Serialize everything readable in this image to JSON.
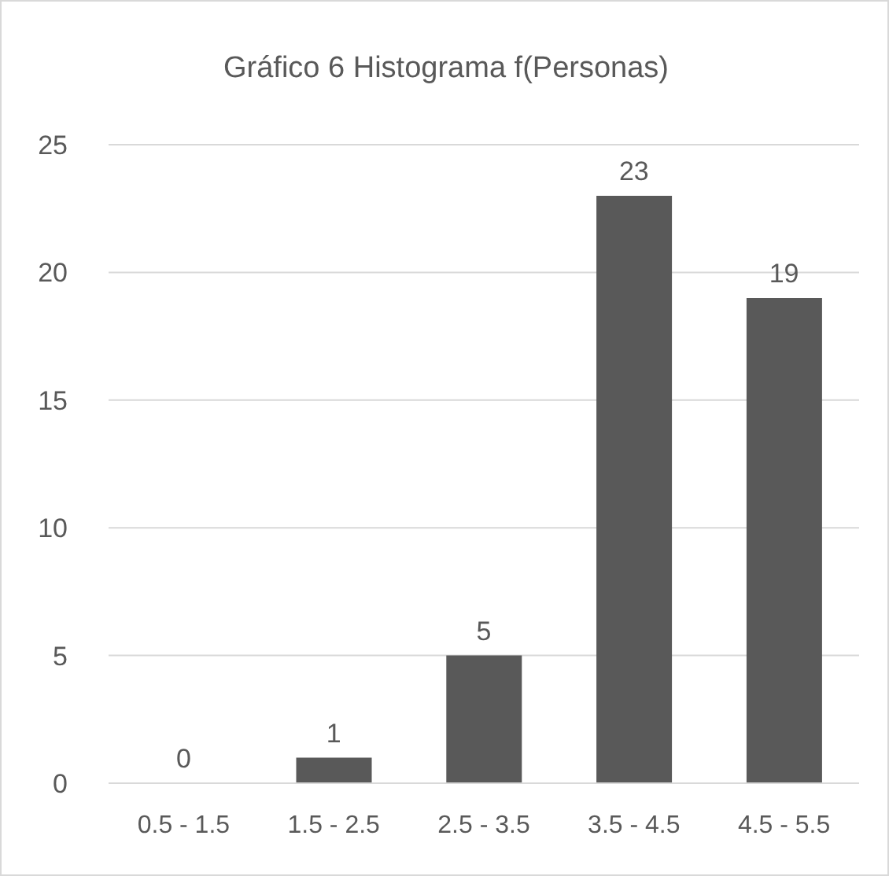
{
  "chart_data": {
    "type": "bar",
    "title": "Gráfico 6 Histograma f(Personas)",
    "categories": [
      "0.5 - 1.5",
      "1.5 - 2.5",
      "2.5 - 3.5",
      "3.5 - 4.5",
      "4.5 - 5.5"
    ],
    "values": [
      0,
      1,
      5,
      23,
      19
    ],
    "color": "#595959",
    "ylim": [
      0,
      25
    ],
    "yticks": [
      0,
      5,
      10,
      15,
      20,
      25
    ],
    "grid": "y",
    "data_labels": true
  }
}
